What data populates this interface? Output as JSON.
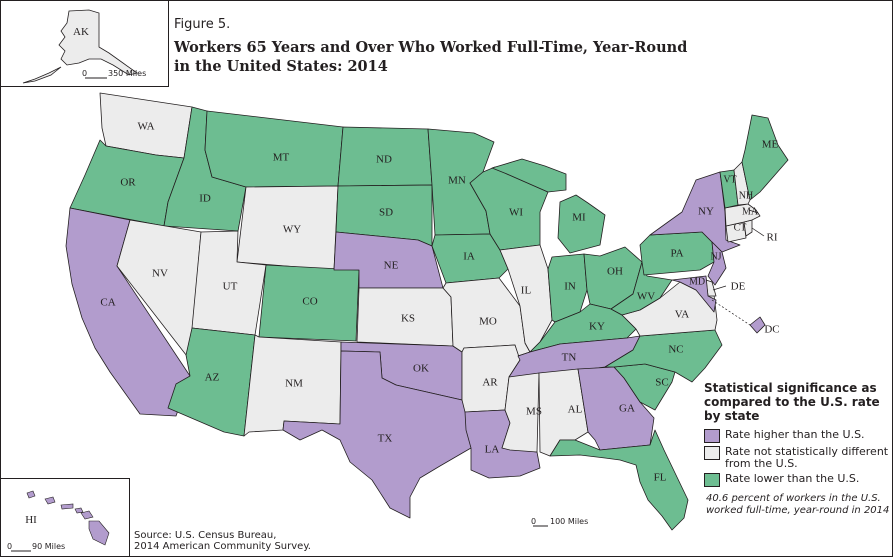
{
  "figure_number": "Figure 5.",
  "title_line1": "Workers 65 Years and Over Who Worked Full-Time, Year-Round",
  "title_line2": "in the United States: 2014",
  "colors": {
    "higher": "#b29ccd",
    "not_different": "#ececec",
    "lower": "#6dbd91",
    "stroke": "#231f20"
  },
  "legend": {
    "title": "Statistical significance as compared to the U.S. rate by state",
    "items": [
      {
        "key": "higher",
        "label": "Rate higher than the U.S."
      },
      {
        "key": "not_different",
        "label": "Rate not statistically different from the U.S."
      },
      {
        "key": "lower",
        "label": "Rate lower than the U.S."
      }
    ]
  },
  "note": "40.6 percent of workers in the U.S. worked full-time, year-round in 2014",
  "source_line1": "Source: U.S. Census Bureau,",
  "source_line2": "2014 American Community Survey.",
  "scales": {
    "main": {
      "zero": "0",
      "label": "100 Miles"
    },
    "ak": {
      "zero": "0",
      "label": "350 Miles"
    },
    "hi": {
      "zero": "0",
      "label": "90 Miles"
    }
  },
  "states": [
    {
      "abbr": "WA",
      "status": "not_different"
    },
    {
      "abbr": "OR",
      "status": "lower"
    },
    {
      "abbr": "CA",
      "status": "higher"
    },
    {
      "abbr": "ID",
      "status": "lower"
    },
    {
      "abbr": "NV",
      "status": "not_different"
    },
    {
      "abbr": "MT",
      "status": "lower"
    },
    {
      "abbr": "WY",
      "status": "not_different"
    },
    {
      "abbr": "UT",
      "status": "not_different"
    },
    {
      "abbr": "AZ",
      "status": "lower"
    },
    {
      "abbr": "CO",
      "status": "lower"
    },
    {
      "abbr": "NM",
      "status": "not_different"
    },
    {
      "abbr": "ND",
      "status": "lower"
    },
    {
      "abbr": "SD",
      "status": "lower"
    },
    {
      "abbr": "NE",
      "status": "higher"
    },
    {
      "abbr": "KS",
      "status": "not_different"
    },
    {
      "abbr": "OK",
      "status": "higher"
    },
    {
      "abbr": "TX",
      "status": "higher"
    },
    {
      "abbr": "MN",
      "status": "lower"
    },
    {
      "abbr": "IA",
      "status": "lower"
    },
    {
      "abbr": "MO",
      "status": "not_different"
    },
    {
      "abbr": "AR",
      "status": "not_different"
    },
    {
      "abbr": "LA",
      "status": "higher"
    },
    {
      "abbr": "WI",
      "status": "lower"
    },
    {
      "abbr": "IL",
      "status": "not_different"
    },
    {
      "abbr": "MI",
      "status": "lower"
    },
    {
      "abbr": "IN",
      "status": "lower"
    },
    {
      "abbr": "OH",
      "status": "lower"
    },
    {
      "abbr": "KY",
      "status": "lower"
    },
    {
      "abbr": "TN",
      "status": "higher"
    },
    {
      "abbr": "MS",
      "status": "not_different"
    },
    {
      "abbr": "AL",
      "status": "not_different"
    },
    {
      "abbr": "GA",
      "status": "higher"
    },
    {
      "abbr": "FL",
      "status": "lower"
    },
    {
      "abbr": "SC",
      "status": "lower"
    },
    {
      "abbr": "NC",
      "status": "lower"
    },
    {
      "abbr": "VA",
      "status": "not_different"
    },
    {
      "abbr": "WV",
      "status": "lower"
    },
    {
      "abbr": "PA",
      "status": "lower"
    },
    {
      "abbr": "NY",
      "status": "higher"
    },
    {
      "abbr": "NJ",
      "status": "higher"
    },
    {
      "abbr": "DE",
      "status": "not_different"
    },
    {
      "abbr": "MD",
      "status": "higher"
    },
    {
      "abbr": "DC",
      "status": "higher"
    },
    {
      "abbr": "CT",
      "status": "not_different"
    },
    {
      "abbr": "RI",
      "status": "not_different"
    },
    {
      "abbr": "MA",
      "status": "not_different"
    },
    {
      "abbr": "VT",
      "status": "lower"
    },
    {
      "abbr": "NH",
      "status": "not_different"
    },
    {
      "abbr": "ME",
      "status": "lower"
    },
    {
      "abbr": "AK",
      "status": "not_different"
    },
    {
      "abbr": "HI",
      "status": "higher"
    }
  ]
}
